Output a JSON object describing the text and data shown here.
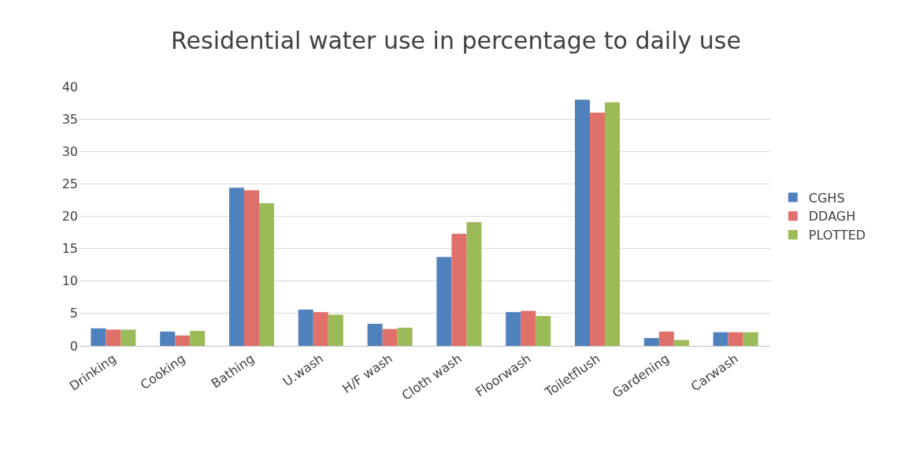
{
  "chart_data": {
    "type": "bar",
    "title": "Residential water use in percentage to daily use",
    "categories": [
      "Drinking",
      "Cooking",
      "Bathing",
      "U.wash",
      "H/F wash",
      "Cloth wash",
      "Floorwash",
      "Toiletflush",
      "Gardening",
      "Carwash"
    ],
    "series": [
      {
        "name": "CGHS",
        "color": "#4f81bd",
        "values": [
          2.7,
          2.2,
          24.4,
          5.6,
          3.4,
          13.7,
          5.2,
          38,
          1.2,
          2.1
        ]
      },
      {
        "name": "DDAGH",
        "color": "#e0706a",
        "values": [
          2.5,
          1.6,
          24,
          5.2,
          2.6,
          17.3,
          5.4,
          36,
          2.2,
          2.1
        ]
      },
      {
        "name": "PLOTTED",
        "color": "#9bbb59",
        "values": [
          2.5,
          2.3,
          22,
          4.8,
          2.8,
          19.1,
          4.6,
          37.6,
          0.9,
          2.1
        ]
      }
    ],
    "ylim": [
      0,
      40
    ],
    "yticks": [
      0,
      5,
      10,
      15,
      20,
      25,
      30,
      35,
      40
    ],
    "grid": "y",
    "legend": "right"
  }
}
